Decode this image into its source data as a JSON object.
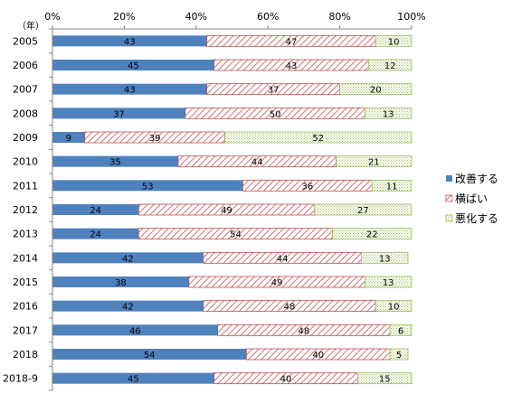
{
  "chart_data": {
    "type": "bar",
    "orientation": "horizontal",
    "stacked": "percent",
    "y_unit_label": "（年）",
    "categories": [
      "2005",
      "2006",
      "2007",
      "2008",
      "2009",
      "2010",
      "2011",
      "2012",
      "2013",
      "2014",
      "2015",
      "2016",
      "2017",
      "2018",
      "2018-9"
    ],
    "xlim": [
      0,
      100
    ],
    "x_ticks": [
      "0%",
      "20%",
      "40%",
      "60%",
      "80%",
      "100%"
    ],
    "x_axis_position": "top",
    "grid": false,
    "legend_position": "right",
    "series": [
      {
        "name": "改善する",
        "color": "#4f81bd",
        "pattern": "solid",
        "values": [
          43,
          45,
          43,
          37,
          9,
          35,
          53,
          24,
          24,
          42,
          38,
          42,
          46,
          54,
          45
        ]
      },
      {
        "name": "横ばい",
        "color": "#c0504d",
        "pattern": "diagonal-hatch",
        "values": [
          47,
          43,
          37,
          50,
          39,
          44,
          36,
          49,
          54,
          44,
          49,
          48,
          48,
          40,
          40
        ]
      },
      {
        "name": "悪化する",
        "color": "#9bbb59",
        "pattern": "dotted",
        "values": [
          10,
          12,
          20,
          13,
          52,
          21,
          11,
          27,
          22,
          13,
          13,
          10,
          6,
          5,
          15
        ]
      }
    ]
  }
}
